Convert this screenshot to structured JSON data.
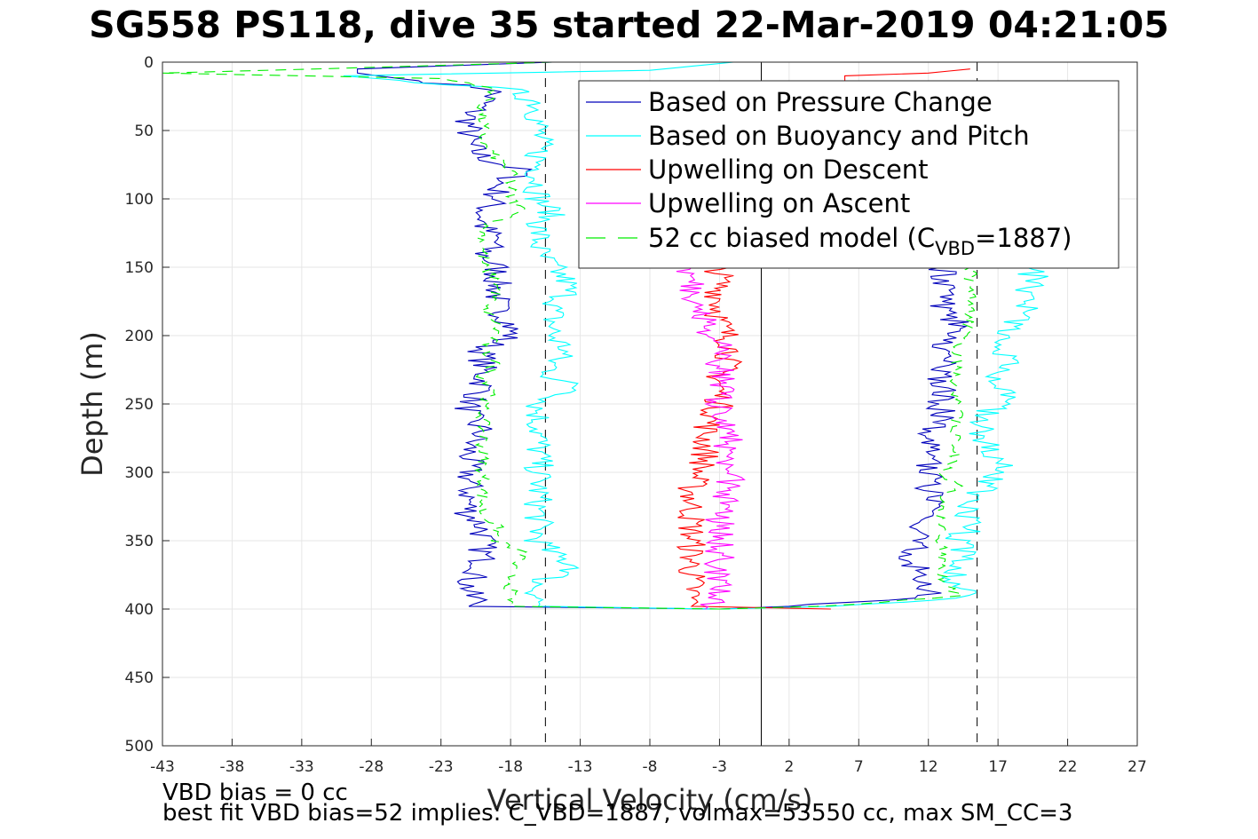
{
  "title": "SG558 PS118, dive 35 started 22-Mar-2019 04:21:05",
  "footer": {
    "line1": "VBD bias = 0 cc",
    "line2": "best fit VBD bias=52 implies: C_VBD=1887, volmax=53550 cc, max SM_CC=3"
  },
  "chart_data": {
    "type": "line",
    "title": "SG558 PS118, dive 35 started 22-Mar-2019 04:21:05",
    "xlabel": "Vertical Velocity (cm/s)",
    "ylabel": "Depth (m)",
    "xlim": [
      -43,
      27
    ],
    "ylim": [
      0,
      500
    ],
    "y_reversed": true,
    "grid": true,
    "xticks": [
      -43,
      -38,
      -33,
      -28,
      -23,
      -18,
      -13,
      -8,
      -3,
      2,
      7,
      12,
      17,
      22,
      27
    ],
    "yticks": [
      0,
      50,
      100,
      150,
      200,
      250,
      300,
      350,
      400,
      450,
      500
    ],
    "legend_placement": "top-right",
    "reference_lines": [
      {
        "x": 0,
        "style": "solid",
        "color": "#000000"
      },
      {
        "x": -15.5,
        "style": "dashed",
        "color": "#000000"
      },
      {
        "x": 15.5,
        "style": "dashed",
        "color": "#000000"
      }
    ],
    "series": [
      {
        "name": "Based on Pressure Change",
        "color": "#0000bb",
        "style": "solid",
        "legend_key": "pressure",
        "descent": {
          "depth": [
            0,
            5,
            8,
            12,
            20,
            30,
            40,
            50,
            60,
            70,
            80,
            90,
            100,
            110,
            120,
            130,
            140,
            150,
            160,
            170,
            180,
            190,
            200,
            210,
            220,
            230,
            240,
            250,
            260,
            270,
            280,
            290,
            300,
            310,
            320,
            330,
            340,
            350,
            360,
            370,
            380,
            390,
            395,
            398,
            400
          ],
          "velocity": [
            -15,
            -29,
            -29,
            -26,
            -19,
            -20,
            -21,
            -21,
            -21,
            -20,
            -17,
            -19,
            -19,
            -20,
            -20,
            -19,
            -20,
            -19,
            -19,
            -19,
            -19,
            -18,
            -18,
            -20,
            -20,
            -20,
            -20,
            -21,
            -21,
            -20,
            -21,
            -21,
            -21,
            -21,
            -21,
            -21,
            -20,
            -20,
            -20,
            -20,
            -21,
            -21,
            -20,
            -21,
            -3
          ]
        },
        "ascent": {
          "depth": [
            400,
            398,
            395,
            392,
            390,
            385,
            380,
            370,
            360,
            350,
            340,
            330,
            320,
            310,
            300,
            290,
            280,
            270,
            260,
            250,
            240,
            230,
            220,
            210,
            200,
            190,
            180,
            170,
            160,
            150
          ],
          "velocity": [
            -3,
            2,
            7,
            10,
            12,
            12,
            12,
            11,
            11,
            11,
            11,
            12,
            12,
            12,
            12,
            12,
            12,
            12,
            13,
            13,
            13,
            13,
            13,
            13,
            14,
            14,
            13,
            13,
            13,
            13
          ]
        }
      },
      {
        "name": "Based on Buoyancy and Pitch",
        "color": "#00ffff",
        "style": "solid",
        "legend_key": "buoyancy",
        "descent": {
          "depth": [
            0,
            6,
            10,
            20,
            30,
            40,
            50,
            60,
            70,
            80,
            90,
            100,
            110,
            120,
            130,
            140,
            150,
            160,
            170,
            180,
            190,
            200,
            210,
            220,
            230,
            240,
            250,
            260,
            270,
            280,
            290,
            300,
            310,
            320,
            330,
            340,
            350,
            360,
            370,
            380,
            390,
            398,
            400
          ],
          "velocity": [
            -2,
            -8,
            -30,
            -18,
            -16,
            -16,
            -16,
            -16,
            -16,
            -16,
            -16,
            -16,
            -15,
            -16,
            -16,
            -16,
            -15,
            -14,
            -14,
            -15,
            -15,
            -15,
            -14,
            -15,
            -15,
            -13,
            -16,
            -16,
            -16,
            -16,
            -16,
            -16,
            -16,
            -16,
            -16,
            -16,
            -16,
            -15,
            -13,
            -16,
            -16,
            -16,
            -3
          ]
        },
        "ascent": {
          "depth": [
            400,
            398,
            395,
            392,
            390,
            385,
            380,
            370,
            360,
            350,
            340,
            330,
            320,
            310,
            300,
            290,
            280,
            270,
            260,
            250,
            240,
            230,
            220,
            210,
            200,
            190,
            180,
            170,
            160,
            150
          ],
          "velocity": [
            -3,
            5,
            10,
            13,
            15,
            14,
            14,
            14,
            15,
            14,
            15,
            15,
            15,
            16,
            17,
            17,
            16,
            16,
            16,
            17,
            18,
            17,
            18,
            17,
            17,
            18,
            19,
            19,
            20,
            19
          ]
        }
      },
      {
        "name": "Upwelling on Descent",
        "color": "#ff0000",
        "style": "solid",
        "legend_key": "updown",
        "descent": {
          "depth": [
            5,
            8,
            10,
            20,
            150,
            170,
            190,
            210,
            230,
            250,
            270,
            290,
            310,
            330,
            350,
            370,
            390,
            398,
            400
          ],
          "velocity": [
            15,
            12,
            6,
            6,
            -3,
            -3,
            -3,
            -2,
            -3,
            -3,
            -4,
            -4,
            -5,
            -5,
            -5,
            -5,
            -5,
            -5,
            5
          ]
        }
      },
      {
        "name": "Upwelling on Ascent",
        "color": "#ff00ff",
        "style": "solid",
        "legend_key": "upasc",
        "ascent": {
          "depth": [
            400,
            390,
            370,
            350,
            330,
            310,
            290,
            270,
            250,
            230,
            210,
            190,
            170,
            150
          ],
          "velocity": [
            -4,
            -3,
            -3,
            -3,
            -3,
            -2,
            -3,
            -2,
            -3,
            -3,
            -3,
            -4,
            -5,
            -5
          ]
        }
      },
      {
        "name": "52 cc biased model (C",
        "name_subscript": "VBD",
        "name_suffix": "=1887)",
        "color": "#00ee00",
        "style": "dashed",
        "legend_key": "model",
        "descent": {
          "depth": [
            0,
            5,
            8,
            12,
            20,
            30,
            40,
            50,
            60,
            70,
            80,
            90,
            100,
            110,
            120,
            130,
            140,
            150,
            160,
            170,
            180,
            190,
            200,
            210,
            220,
            230,
            240,
            250,
            260,
            270,
            280,
            290,
            300,
            310,
            320,
            330,
            340,
            350,
            360,
            370,
            380,
            390,
            398,
            400
          ],
          "velocity": [
            -15,
            -32,
            -43,
            -23,
            -19,
            -20,
            -20,
            -20,
            -20,
            -19,
            -18,
            -18,
            -18,
            -17,
            -20,
            -20,
            -20,
            -20,
            -19,
            -19,
            -20,
            -19,
            -19,
            -20,
            -19,
            -20,
            -19,
            -20,
            -20,
            -20,
            -20,
            -20,
            -20,
            -20,
            -20,
            -20,
            -19,
            -19,
            -17,
            -18,
            -18,
            -18,
            -18,
            -3
          ]
        },
        "ascent": {
          "depth": [
            400,
            398,
            395,
            392,
            390,
            380,
            370,
            360,
            350,
            340,
            330,
            320,
            310,
            300,
            290,
            280,
            270,
            260,
            250,
            240,
            230,
            220,
            210,
            200,
            190,
            180,
            170,
            160,
            150
          ],
          "velocity": [
            -3,
            4,
            9,
            12,
            14,
            13,
            13,
            13,
            13,
            13,
            13,
            13,
            14,
            13,
            14,
            14,
            14,
            14,
            14,
            14,
            14,
            14,
            14,
            15,
            15,
            15,
            15,
            15,
            15
          ]
        }
      }
    ]
  }
}
